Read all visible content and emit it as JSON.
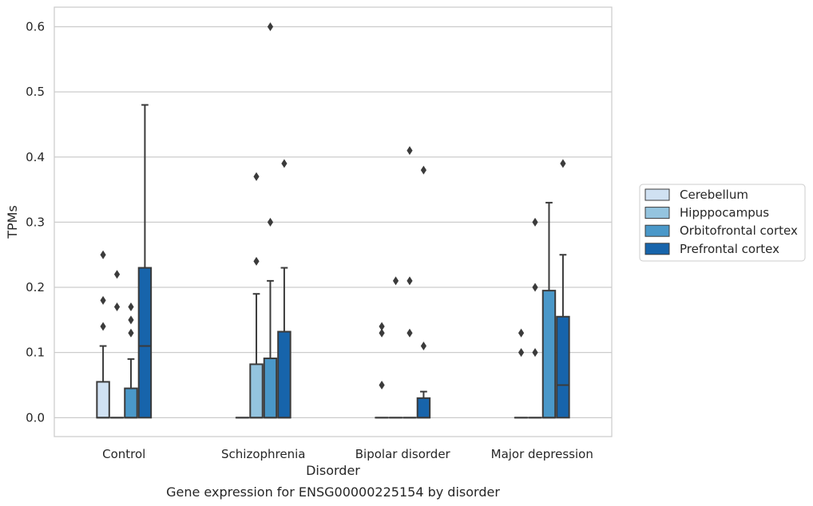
{
  "chart_data": {
    "type": "box",
    "title": "",
    "caption": "Gene expression for ENSG00000225154 by disorder",
    "xlabel": "Disorder",
    "ylabel": "TPMs",
    "ylim": [
      -0.029,
      0.63
    ],
    "yticks": [
      0.0,
      0.1,
      0.2,
      0.3,
      0.4,
      0.5,
      0.6
    ],
    "ytick_labels": [
      "0.0",
      "0.1",
      "0.2",
      "0.3",
      "0.4",
      "0.5",
      "0.6"
    ],
    "grid": "horizontal",
    "legend_position": "right",
    "categories": [
      "Control",
      "Schizophrenia",
      "Bipolar disorder",
      "Major depression"
    ],
    "series": [
      {
        "name": "Cerebellum",
        "color": "#d0e1f2",
        "boxes": [
          {
            "q1": 0.0,
            "median": 0.0,
            "q3": 0.055,
            "whisker_low": 0.0,
            "whisker_high": 0.11,
            "outliers": [
              0.14,
              0.18,
              0.25
            ]
          },
          {
            "q1": 0.0,
            "median": 0.0,
            "q3": 0.0,
            "whisker_low": 0.0,
            "whisker_high": 0.0,
            "outliers": []
          },
          {
            "q1": 0.0,
            "median": 0.0,
            "q3": 0.0,
            "whisker_low": 0.0,
            "whisker_high": 0.0,
            "outliers": [
              0.05,
              0.13,
              0.14
            ]
          },
          {
            "q1": 0.0,
            "median": 0.0,
            "q3": 0.0,
            "whisker_low": 0.0,
            "whisker_high": 0.0,
            "outliers": [
              0.1,
              0.13
            ]
          }
        ]
      },
      {
        "name": "Hipppocampus",
        "color": "#94c4df",
        "boxes": [
          {
            "q1": 0.0,
            "median": 0.0,
            "q3": 0.0,
            "whisker_low": 0.0,
            "whisker_high": 0.0,
            "outliers": [
              0.17,
              0.22
            ]
          },
          {
            "q1": 0.0,
            "median": 0.0,
            "q3": 0.082,
            "whisker_low": 0.0,
            "whisker_high": 0.19,
            "outliers": [
              0.24,
              0.37
            ]
          },
          {
            "q1": 0.0,
            "median": 0.0,
            "q3": 0.0,
            "whisker_low": 0.0,
            "whisker_high": 0.0,
            "outliers": [
              0.21
            ]
          },
          {
            "q1": 0.0,
            "median": 0.0,
            "q3": 0.0,
            "whisker_low": 0.0,
            "whisker_high": 0.0,
            "outliers": [
              0.1,
              0.2,
              0.3
            ]
          }
        ]
      },
      {
        "name": "Orbitofrontal cortex",
        "color": "#4a98c9",
        "boxes": [
          {
            "q1": 0.0,
            "median": 0.0,
            "q3": 0.045,
            "whisker_low": 0.0,
            "whisker_high": 0.09,
            "outliers": [
              0.13,
              0.15,
              0.17
            ]
          },
          {
            "q1": 0.0,
            "median": 0.0,
            "q3": 0.091,
            "whisker_low": 0.0,
            "whisker_high": 0.21,
            "outliers": [
              0.3,
              0.6
            ]
          },
          {
            "q1": 0.0,
            "median": 0.0,
            "q3": 0.0,
            "whisker_low": 0.0,
            "whisker_high": 0.0,
            "outliers": [
              0.13,
              0.21,
              0.41
            ]
          },
          {
            "q1": 0.0,
            "median": 0.0,
            "q3": 0.195,
            "whisker_low": 0.0,
            "whisker_high": 0.33,
            "outliers": []
          }
        ]
      },
      {
        "name": "Prefrontal cortex",
        "color": "#1764ab",
        "boxes": [
          {
            "q1": 0.0,
            "median": 0.11,
            "q3": 0.23,
            "whisker_low": 0.0,
            "whisker_high": 0.48,
            "outliers": []
          },
          {
            "q1": 0.0,
            "median": 0.0,
            "q3": 0.132,
            "whisker_low": 0.0,
            "whisker_high": 0.23,
            "outliers": [
              0.39
            ]
          },
          {
            "q1": 0.0,
            "median": 0.0,
            "q3": 0.03,
            "whisker_low": 0.0,
            "whisker_high": 0.04,
            "outliers": [
              0.11,
              0.38
            ]
          },
          {
            "q1": 0.0,
            "median": 0.05,
            "q3": 0.155,
            "whisker_low": 0.0,
            "whisker_high": 0.25,
            "outliers": [
              0.39
            ]
          }
        ]
      }
    ]
  }
}
